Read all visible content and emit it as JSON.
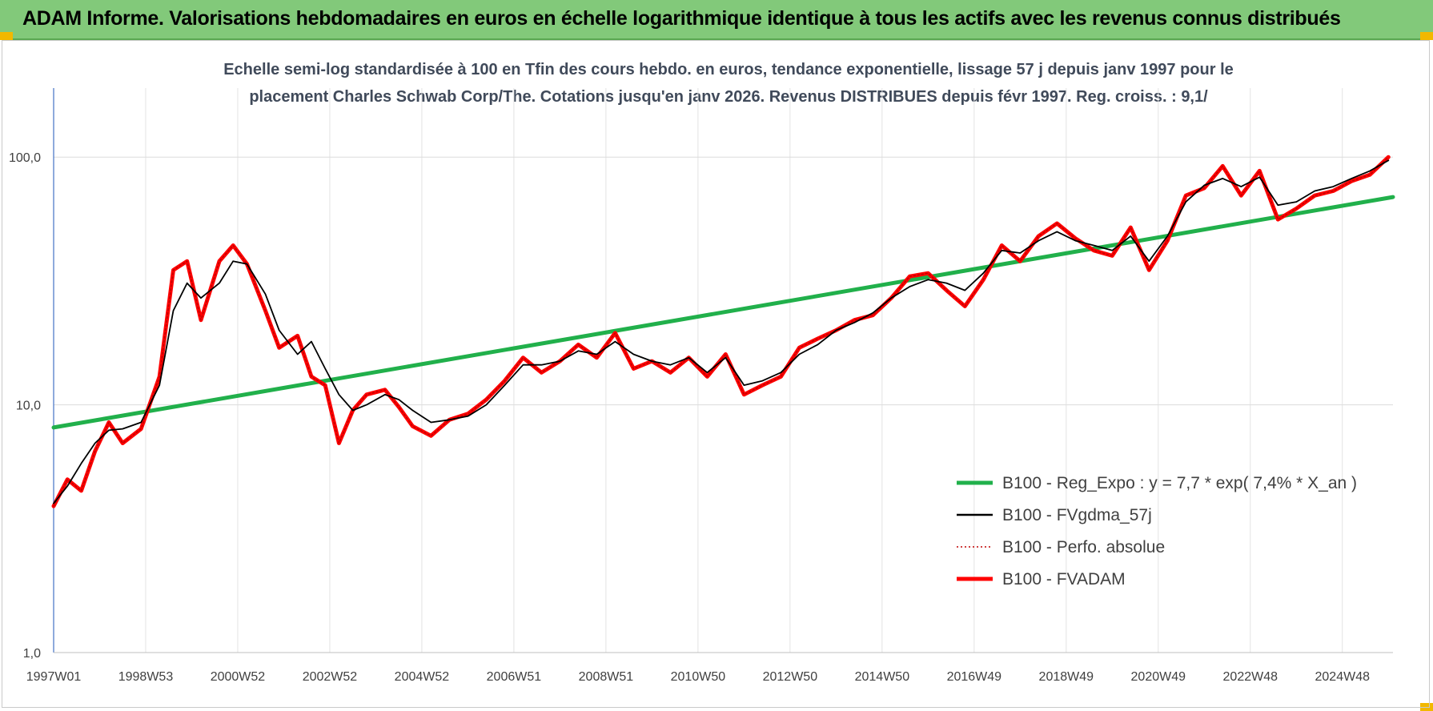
{
  "banner": {
    "title": "ADAM Informe. Valorisations hebdomadaires en euros en échelle logarithmique identique à tous les actifs avec les revenus connus distribués",
    "color": "#82c97a"
  },
  "chart_data": {
    "type": "line",
    "title_lines": [
      "Echelle semi-log standardisée à 100 en Tfin des cours hebdo. en euros, tendance exponentielle, lissage 57 j depuis janv 1997 pour le",
      "placement Charles Schwab Corp/The. Cotations jusqu'en janv 2026. Revenus DISTRIBUES depuis févr 1997. Reg. croiss. : 9,1/"
    ],
    "y_scale": "log",
    "ylim": [
      1,
      190
    ],
    "y_ticks": [
      1,
      10,
      100
    ],
    "y_tick_labels": [
      "1,0",
      "10,0",
      "100,0"
    ],
    "xlim": [
      1997.0,
      2026.1
    ],
    "x_ticks": [
      1997.0,
      1999.0,
      2001.0,
      2003.0,
      2005.0,
      2007.0,
      2009.0,
      2011.0,
      2013.0,
      2015.0,
      2017.0,
      2019.0,
      2021.0,
      2023.0,
      2025.0
    ],
    "x_tick_labels": [
      "1997W01",
      "1998W53",
      "2000W52",
      "2002W52",
      "2004W52",
      "2006W51",
      "2008W51",
      "2010W50",
      "2012W50",
      "2014W50",
      "2016W49",
      "2018W49",
      "2020W49",
      "2022W48",
      "2024W48"
    ],
    "grid": true,
    "legend_position": "bottom-right",
    "series": [
      {
        "name": "B100 - Reg_Expo : y = 7,7 * exp( 7,4% *  X_an )",
        "color": "#21b04b",
        "style": "thick",
        "x": [
          1997.0,
          2026.1
        ],
        "y": [
          8.1,
          69.0
        ]
      },
      {
        "name": "B100 - FVgdma_57j",
        "color": "#000000",
        "style": "thin",
        "x": [
          1997.0,
          1997.3,
          1997.6,
          1997.9,
          1998.2,
          1998.5,
          1998.9,
          1999.3,
          1999.6,
          1999.9,
          2000.2,
          2000.6,
          2000.9,
          2001.2,
          2001.6,
          2001.9,
          2002.3,
          2002.6,
          2002.9,
          2003.2,
          2003.5,
          2003.8,
          2004.2,
          2004.5,
          2004.8,
          2005.2,
          2005.6,
          2006.0,
          2006.4,
          2006.8,
          2007.2,
          2007.6,
          2008.0,
          2008.4,
          2008.8,
          2009.2,
          2009.6,
          2010.0,
          2010.4,
          2010.8,
          2011.2,
          2011.6,
          2012.0,
          2012.4,
          2012.8,
          2013.2,
          2013.6,
          2014.0,
          2014.4,
          2014.8,
          2015.2,
          2015.6,
          2016.0,
          2016.4,
          2016.8,
          2017.2,
          2017.6,
          2018.0,
          2018.4,
          2018.8,
          2019.2,
          2019.6,
          2020.0,
          2020.4,
          2020.8,
          2021.2,
          2021.6,
          2022.0,
          2022.4,
          2022.8,
          2023.2,
          2023.6,
          2024.0,
          2024.4,
          2024.8,
          2025.2,
          2025.6,
          2026.0
        ],
        "y": [
          4.0,
          4.7,
          5.8,
          7.0,
          7.9,
          8.0,
          8.5,
          12.0,
          24.0,
          31.0,
          27.0,
          31.0,
          38.0,
          37.0,
          28.0,
          20.0,
          16.0,
          18.0,
          14.0,
          11.0,
          9.5,
          10.0,
          11.0,
          10.5,
          9.5,
          8.5,
          8.7,
          9.0,
          10.0,
          12.0,
          14.5,
          14.5,
          15.0,
          16.5,
          16.0,
          18.0,
          16.0,
          15.0,
          14.5,
          15.5,
          13.5,
          15.5,
          12.0,
          12.5,
          13.5,
          16.0,
          17.5,
          20.0,
          21.5,
          23.5,
          27.0,
          30.0,
          32.0,
          31.0,
          29.0,
          34.0,
          42.0,
          41.0,
          46.0,
          50.0,
          46.0,
          44.0,
          42.0,
          48.0,
          38.0,
          48.0,
          66.0,
          77.0,
          82.0,
          76.0,
          83.0,
          64.0,
          66.0,
          73.0,
          76.0,
          82.0,
          88.0,
          97.0
        ]
      },
      {
        "name": "B100 - Perfo. absolue",
        "color": "#c00000",
        "style": "dotted",
        "x": [
          1997.0,
          1997.3,
          1997.6,
          1997.9,
          1998.2,
          1998.5,
          1998.9,
          1999.3,
          1999.6,
          1999.9,
          2000.2,
          2000.6,
          2000.9,
          2001.2,
          2001.6,
          2001.9,
          2002.3,
          2002.6,
          2002.9,
          2003.2,
          2003.5,
          2003.8,
          2004.2,
          2004.5,
          2004.8,
          2005.2,
          2005.6,
          2006.0,
          2006.4,
          2006.8,
          2007.2,
          2007.6,
          2008.0,
          2008.4,
          2008.8,
          2009.2,
          2009.6,
          2010.0,
          2010.4,
          2010.8,
          2011.2,
          2011.6,
          2012.0,
          2012.4,
          2012.8,
          2013.2,
          2013.6,
          2014.0,
          2014.4,
          2014.8,
          2015.2,
          2015.6,
          2016.0,
          2016.4,
          2016.8,
          2017.2,
          2017.6,
          2018.0,
          2018.4,
          2018.8,
          2019.2,
          2019.6,
          2020.0,
          2020.4,
          2020.8,
          2021.2,
          2021.6,
          2022.0,
          2022.4,
          2022.8,
          2023.2,
          2023.6,
          2024.0,
          2024.4,
          2024.8,
          2025.2,
          2025.6,
          2026.0
        ],
        "y": [
          3.9,
          5.0,
          4.5,
          6.5,
          8.5,
          7.0,
          8.0,
          13.0,
          35.0,
          38.0,
          22.0,
          38.0,
          44.0,
          37.0,
          24.0,
          17.0,
          19.0,
          13.0,
          12.0,
          7.0,
          9.5,
          11.0,
          11.5,
          9.8,
          8.2,
          7.5,
          8.7,
          9.2,
          10.5,
          12.5,
          15.5,
          13.5,
          15.0,
          17.5,
          15.5,
          19.5,
          14.0,
          15.0,
          13.5,
          15.5,
          13.0,
          16.0,
          11.0,
          12.0,
          13.0,
          17.0,
          18.5,
          20.0,
          22.0,
          23.0,
          27.0,
          33.0,
          34.0,
          29.0,
          25.0,
          32.0,
          44.0,
          38.0,
          48.0,
          54.0,
          47.0,
          42.0,
          40.0,
          52.0,
          35.0,
          46.0,
          70.0,
          75.0,
          92.0,
          70.0,
          88.0,
          56.0,
          62.0,
          70.0,
          73.0,
          80.0,
          85.0,
          100.0
        ]
      },
      {
        "name": "B100 - FVADAM",
        "color": "#ff0000",
        "style": "thick",
        "x": [
          1997.0,
          1997.3,
          1997.6,
          1997.9,
          1998.2,
          1998.5,
          1998.9,
          1999.3,
          1999.6,
          1999.9,
          2000.2,
          2000.6,
          2000.9,
          2001.2,
          2001.6,
          2001.9,
          2002.3,
          2002.6,
          2002.9,
          2003.2,
          2003.5,
          2003.8,
          2004.2,
          2004.5,
          2004.8,
          2005.2,
          2005.6,
          2006.0,
          2006.4,
          2006.8,
          2007.2,
          2007.6,
          2008.0,
          2008.4,
          2008.8,
          2009.2,
          2009.6,
          2010.0,
          2010.4,
          2010.8,
          2011.2,
          2011.6,
          2012.0,
          2012.4,
          2012.8,
          2013.2,
          2013.6,
          2014.0,
          2014.4,
          2014.8,
          2015.2,
          2015.6,
          2016.0,
          2016.4,
          2016.8,
          2017.2,
          2017.6,
          2018.0,
          2018.4,
          2018.8,
          2019.2,
          2019.6,
          2020.0,
          2020.4,
          2020.8,
          2021.2,
          2021.6,
          2022.0,
          2022.4,
          2022.8,
          2023.2,
          2023.6,
          2024.0,
          2024.4,
          2024.8,
          2025.2,
          2025.6,
          2026.0
        ],
        "y": [
          3.9,
          5.0,
          4.5,
          6.5,
          8.5,
          7.0,
          8.0,
          13.0,
          35.0,
          38.0,
          22.0,
          38.0,
          44.0,
          37.0,
          24.0,
          17.0,
          19.0,
          13.0,
          12.0,
          7.0,
          9.5,
          11.0,
          11.5,
          9.8,
          8.2,
          7.5,
          8.7,
          9.2,
          10.5,
          12.5,
          15.5,
          13.5,
          15.0,
          17.5,
          15.5,
          19.5,
          14.0,
          15.0,
          13.5,
          15.5,
          13.0,
          16.0,
          11.0,
          12.0,
          13.0,
          17.0,
          18.5,
          20.0,
          22.0,
          23.0,
          27.0,
          33.0,
          34.0,
          29.0,
          25.0,
          32.0,
          44.0,
          38.0,
          48.0,
          54.0,
          47.0,
          42.0,
          40.0,
          52.0,
          35.0,
          46.0,
          70.0,
          75.0,
          92.0,
          70.0,
          88.0,
          56.0,
          62.0,
          70.0,
          73.0,
          80.0,
          85.0,
          100.0
        ]
      }
    ]
  }
}
